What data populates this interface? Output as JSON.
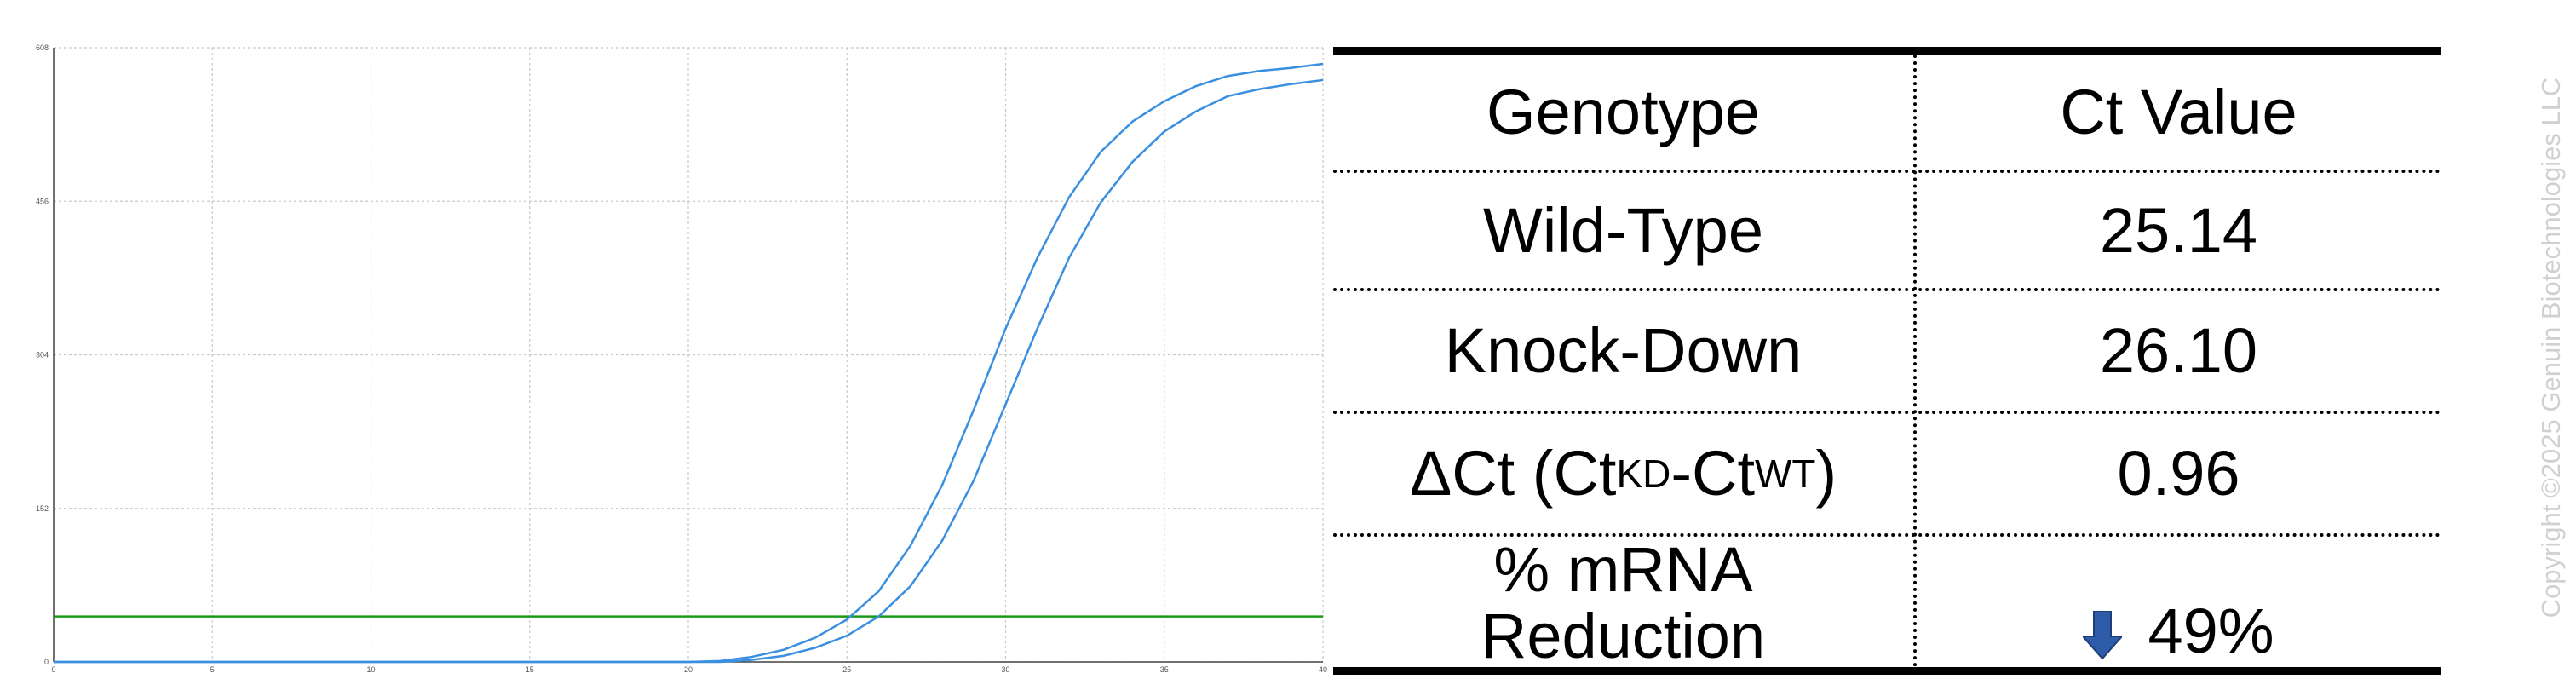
{
  "chart_data": {
    "type": "line",
    "title": "",
    "xlabel": "",
    "ylabel": "",
    "xlim": [
      0,
      40
    ],
    "ylim": [
      0,
      608
    ],
    "x_ticks": [
      "0",
      "5",
      "10",
      "15",
      "20",
      "25",
      "30",
      "35",
      "40"
    ],
    "y_ticks": [
      "0",
      "152",
      "304",
      "456",
      "608"
    ],
    "grid": true,
    "threshold": 45,
    "x": [
      0,
      1,
      2,
      3,
      4,
      5,
      6,
      7,
      8,
      9,
      10,
      11,
      12,
      13,
      14,
      15,
      16,
      17,
      18,
      19,
      20,
      21,
      22,
      23,
      24,
      25,
      26,
      27,
      28,
      29,
      30,
      31,
      32,
      33,
      34,
      35,
      36,
      37,
      38,
      39,
      40
    ],
    "series": [
      {
        "values": [
          0,
          0,
          0,
          0,
          0,
          0,
          0,
          0,
          0,
          0,
          0,
          0,
          0,
          0,
          0,
          0,
          0,
          0,
          0,
          0,
          0,
          1,
          5,
          12,
          24,
          42,
          70,
          115,
          175,
          250,
          330,
          400,
          460,
          505,
          535,
          555,
          570,
          580,
          585,
          588,
          592
        ]
      },
      {
        "values": [
          0,
          0,
          0,
          0,
          0,
          0,
          0,
          0,
          0,
          0,
          0,
          0,
          0,
          0,
          0,
          0,
          0,
          0,
          0,
          0,
          0,
          0,
          2,
          6,
          14,
          26,
          45,
          75,
          120,
          180,
          255,
          330,
          400,
          455,
          495,
          525,
          545,
          560,
          567,
          572,
          576
        ]
      }
    ],
    "colors": {
      "lines": "#3a8fe0",
      "threshold": "#1a9a1a",
      "grid": "#c8c8c8"
    }
  },
  "table": {
    "headers": [
      "Genotype",
      "Ct Value"
    ],
    "rows": [
      {
        "genotype": "Wild-Type",
        "value": "25.14"
      },
      {
        "genotype": "Knock-Down",
        "value": "26.10"
      },
      {
        "genotype_main": "ΔCt (Ct",
        "genotype_sub1": "KD",
        "genotype_mid": "-Ct",
        "genotype_sub2": "WT",
        "genotype_end": ")",
        "value": "0.96"
      }
    ],
    "reduction": {
      "label_line1": "% mRNA",
      "label_line2": "Reduction",
      "value": "49%",
      "icon": "down-arrow-icon",
      "arrow_color": "#2e5ca8"
    }
  },
  "copyright": "Copyright ©2025 Genuin Biotechnologies LLC"
}
